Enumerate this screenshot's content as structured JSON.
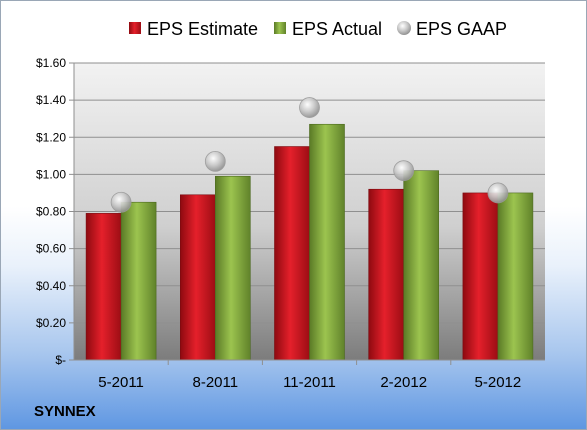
{
  "company_name": "SYNNEX",
  "colors": {
    "estimate": "#c0121c",
    "actual": "#7ea33c",
    "gaap": "#b5b5b5"
  },
  "chart_data": {
    "type": "bar",
    "categories": [
      "5-2011",
      "8-2011",
      "11-2011",
      "2-2012",
      "5-2012"
    ],
    "series": [
      {
        "name": "EPS Estimate",
        "kind": "bar",
        "values": [
          0.79,
          0.89,
          1.15,
          0.92,
          0.9
        ]
      },
      {
        "name": "EPS Actual",
        "kind": "bar",
        "values": [
          0.85,
          0.99,
          1.27,
          1.02,
          0.9
        ]
      },
      {
        "name": "EPS GAAP",
        "kind": "marker",
        "values": [
          0.85,
          1.07,
          1.36,
          1.02,
          0.9
        ]
      }
    ],
    "ylim": [
      0,
      1.6
    ],
    "y_ticks": [
      0,
      0.2,
      0.4,
      0.6,
      0.8,
      1.0,
      1.2,
      1.4,
      1.6
    ],
    "y_tick_labels": [
      "$-",
      "$0.20",
      "$0.40",
      "$0.60",
      "$0.80",
      "$1.00",
      "$1.20",
      "$1.40",
      "$1.60"
    ],
    "grid": true,
    "legend": "top-center",
    "title": "",
    "xlabel": "",
    "ylabel": ""
  }
}
